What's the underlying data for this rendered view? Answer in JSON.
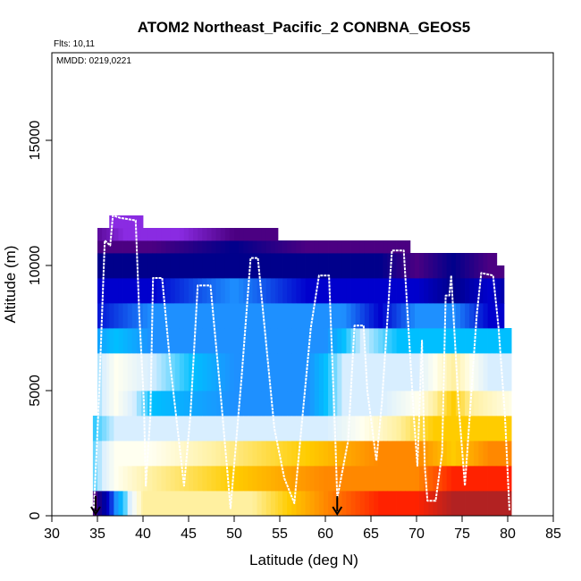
{
  "chart_data": {
    "type": "heatmap",
    "title": "ATOM2 Northeast_Pacific_2 CONBNA_GEOS5",
    "flights_label": "Flts: 10,11",
    "dates_label": "MMDD: 0219,0221",
    "xlabel": "Latitude (deg N)",
    "ylabel": "Altitude (m)",
    "xlim": [
      30,
      85
    ],
    "ylim": [
      0,
      18500
    ],
    "xticks": [
      30,
      35,
      40,
      45,
      50,
      55,
      60,
      65,
      70,
      75,
      80,
      85
    ],
    "yticks": [
      0,
      5000,
      10000,
      15000
    ],
    "arrows_latitude": [
      34.8,
      61.3
    ],
    "colors": {
      "frame": "#000000",
      "flight_track": "#ffffff",
      "arrow": "#000000"
    },
    "color_scale": [
      "#b22222",
      "#ff2200",
      "#ff8800",
      "#ffcc00",
      "#fff0a0",
      "#fffff0",
      "#d8eeff",
      "#00bfff",
      "#1e90ff",
      "#0000cd",
      "#00008b",
      "#4b0082",
      "#8a2be2"
    ],
    "columns": [
      {
        "lat_min": 34.5,
        "lat_max": 35.0,
        "alt_top": 4000
      },
      {
        "lat_min": 35.0,
        "lat_max": 36.3,
        "alt_top": 11500
      },
      {
        "lat_min": 36.3,
        "lat_max": 40.0,
        "alt_top": 12000
      },
      {
        "lat_min": 40.0,
        "lat_max": 49.0,
        "alt_top": 11500
      },
      {
        "lat_min": 49.0,
        "lat_max": 54.8,
        "alt_top": 11500
      },
      {
        "lat_min": 54.8,
        "lat_max": 69.3,
        "alt_top": 11000
      },
      {
        "lat_min": 69.3,
        "lat_max": 78.8,
        "alt_top": 10500
      },
      {
        "lat_min": 78.8,
        "lat_max": 79.6,
        "alt_top": 10000
      },
      {
        "lat_min": 79.6,
        "lat_max": 80.4,
        "alt_top": 7500
      }
    ],
    "layers": [
      {
        "alt_min": 0,
        "alt_max": 1000,
        "stops": [
          [
            34,
            12
          ],
          [
            40,
            4
          ],
          [
            52,
            4
          ],
          [
            56,
            3
          ],
          [
            60,
            2
          ],
          [
            66,
            1
          ],
          [
            70,
            1
          ],
          [
            74,
            0
          ],
          [
            78,
            0
          ],
          [
            81,
            0
          ]
        ]
      },
      {
        "alt_min": 1000,
        "alt_max": 2000,
        "stops": [
          [
            34,
            7
          ],
          [
            37,
            5
          ],
          [
            41,
            4
          ],
          [
            50,
            3
          ],
          [
            60,
            2
          ],
          [
            66,
            2
          ],
          [
            70,
            2
          ],
          [
            74,
            1
          ],
          [
            78,
            1
          ],
          [
            81,
            1
          ]
        ]
      },
      {
        "alt_min": 2000,
        "alt_max": 3000,
        "stops": [
          [
            34,
            7
          ],
          [
            37,
            5
          ],
          [
            41,
            5
          ],
          [
            48,
            4
          ],
          [
            58,
            3
          ],
          [
            66,
            2
          ],
          [
            70,
            2
          ],
          [
            74,
            3
          ],
          [
            78,
            2
          ],
          [
            81,
            2
          ]
        ]
      },
      {
        "alt_min": 3000,
        "alt_max": 4000,
        "stops": [
          [
            34,
            7
          ],
          [
            37,
            6
          ],
          [
            41,
            6
          ],
          [
            50,
            6
          ],
          [
            60,
            6
          ],
          [
            64,
            5
          ],
          [
            68,
            4
          ],
          [
            72,
            3
          ],
          [
            76,
            3
          ],
          [
            81,
            3
          ]
        ]
      },
      {
        "alt_min": 4000,
        "alt_max": 5000,
        "stops": [
          [
            34,
            7
          ],
          [
            37,
            5
          ],
          [
            41,
            7
          ],
          [
            50,
            8
          ],
          [
            58,
            8
          ],
          [
            62,
            6
          ],
          [
            66,
            6
          ],
          [
            70,
            5
          ],
          [
            74,
            3
          ],
          [
            76,
            4
          ],
          [
            81,
            5
          ]
        ]
      },
      {
        "alt_min": 5000,
        "alt_max": 6500,
        "stops": [
          [
            34,
            7
          ],
          [
            37,
            5
          ],
          [
            41,
            6
          ],
          [
            50,
            8
          ],
          [
            58,
            8
          ],
          [
            62,
            6
          ],
          [
            66,
            6
          ],
          [
            70,
            6
          ],
          [
            74,
            4
          ],
          [
            78,
            6
          ],
          [
            81,
            6
          ]
        ]
      },
      {
        "alt_min": 6500,
        "alt_max": 7500,
        "stops": [
          [
            34,
            8
          ],
          [
            37,
            7
          ],
          [
            41,
            8
          ],
          [
            50,
            8
          ],
          [
            60,
            8
          ],
          [
            64,
            6
          ],
          [
            68,
            7
          ],
          [
            72,
            7
          ],
          [
            76,
            7
          ],
          [
            81,
            7
          ]
        ]
      },
      {
        "alt_min": 7500,
        "alt_max": 8500,
        "stops": [
          [
            34,
            9
          ],
          [
            41,
            8
          ],
          [
            50,
            8
          ],
          [
            58,
            8
          ],
          [
            62,
            8
          ],
          [
            66,
            9
          ],
          [
            70,
            8
          ],
          [
            74,
            8
          ],
          [
            78,
            9
          ],
          [
            81,
            9
          ]
        ]
      },
      {
        "alt_min": 8500,
        "alt_max": 9500,
        "stops": [
          [
            34,
            9
          ],
          [
            41,
            9
          ],
          [
            50,
            8
          ],
          [
            58,
            9
          ],
          [
            62,
            9
          ],
          [
            66,
            9
          ],
          [
            70,
            9
          ],
          [
            74,
            10
          ],
          [
            78,
            9
          ],
          [
            81,
            10
          ]
        ]
      },
      {
        "alt_min": 9500,
        "alt_max": 10500,
        "stops": [
          [
            34,
            10
          ],
          [
            41,
            10
          ],
          [
            50,
            10
          ],
          [
            58,
            10
          ],
          [
            66,
            10
          ],
          [
            70,
            11
          ],
          [
            74,
            10
          ],
          [
            78,
            11
          ],
          [
            81,
            11
          ]
        ]
      },
      {
        "alt_min": 10500,
        "alt_max": 11000,
        "stops": [
          [
            34,
            11
          ],
          [
            41,
            11
          ],
          [
            50,
            10
          ],
          [
            58,
            11
          ],
          [
            66,
            11
          ],
          [
            70,
            11
          ],
          [
            81,
            11
          ]
        ]
      },
      {
        "alt_min": 11000,
        "alt_max": 11500,
        "stops": [
          [
            34,
            11
          ],
          [
            38,
            12
          ],
          [
            44,
            12
          ],
          [
            50,
            11
          ],
          [
            58,
            11
          ],
          [
            81,
            11
          ]
        ]
      },
      {
        "alt_min": 11500,
        "alt_max": 12000,
        "stops": [
          [
            34,
            12
          ],
          [
            40,
            12
          ],
          [
            81,
            12
          ]
        ]
      }
    ],
    "flight_track": [
      [
        34.6,
        300
      ],
      [
        34.9,
        2500
      ],
      [
        35.2,
        5000
      ],
      [
        35.5,
        8000
      ],
      [
        35.8,
        11000
      ],
      [
        36.1,
        10900
      ],
      [
        36.4,
        10800
      ],
      [
        36.7,
        12000
      ],
      [
        37.5,
        11900
      ],
      [
        39.2,
        11800
      ],
      [
        39.6,
        8000
      ],
      [
        40.1,
        4500
      ],
      [
        40.3,
        1200
      ],
      [
        40.8,
        4000
      ],
      [
        41.1,
        9500
      ],
      [
        42.1,
        9500
      ],
      [
        43.0,
        6000
      ],
      [
        44.5,
        1200
      ],
      [
        45.2,
        4000
      ],
      [
        46.0,
        9200
      ],
      [
        47.4,
        9200
      ],
      [
        48.6,
        4500
      ],
      [
        49.6,
        300
      ],
      [
        50.8,
        5500
      ],
      [
        51.8,
        10300
      ],
      [
        52.6,
        10300
      ],
      [
        54.4,
        3500
      ],
      [
        55.5,
        1500
      ],
      [
        56.6,
        500
      ],
      [
        58.4,
        7500
      ],
      [
        59.3,
        9600
      ],
      [
        60.4,
        9600
      ],
      [
        61.1,
        3000
      ],
      [
        61.3,
        700
      ],
      [
        62.5,
        3000
      ],
      [
        63.2,
        7600
      ],
      [
        64.2,
        7600
      ],
      [
        64.6,
        5000
      ],
      [
        65.6,
        2200
      ],
      [
        66.2,
        4500
      ],
      [
        67.3,
        10600
      ],
      [
        68.6,
        10600
      ],
      [
        69.7,
        4000
      ],
      [
        70.1,
        2000
      ],
      [
        70.6,
        7000
      ],
      [
        70.9,
        2000
      ],
      [
        71.2,
        600
      ],
      [
        72.1,
        600
      ],
      [
        72.8,
        2500
      ],
      [
        73.2,
        8800
      ],
      [
        73.6,
        8800
      ],
      [
        73.8,
        9600
      ],
      [
        74.6,
        4500
      ],
      [
        75.3,
        1200
      ],
      [
        76.6,
        8000
      ],
      [
        77.1,
        9700
      ],
      [
        78.4,
        9600
      ],
      [
        79.0,
        7500
      ],
      [
        79.7,
        4000
      ],
      [
        80.2,
        200
      ]
    ]
  }
}
